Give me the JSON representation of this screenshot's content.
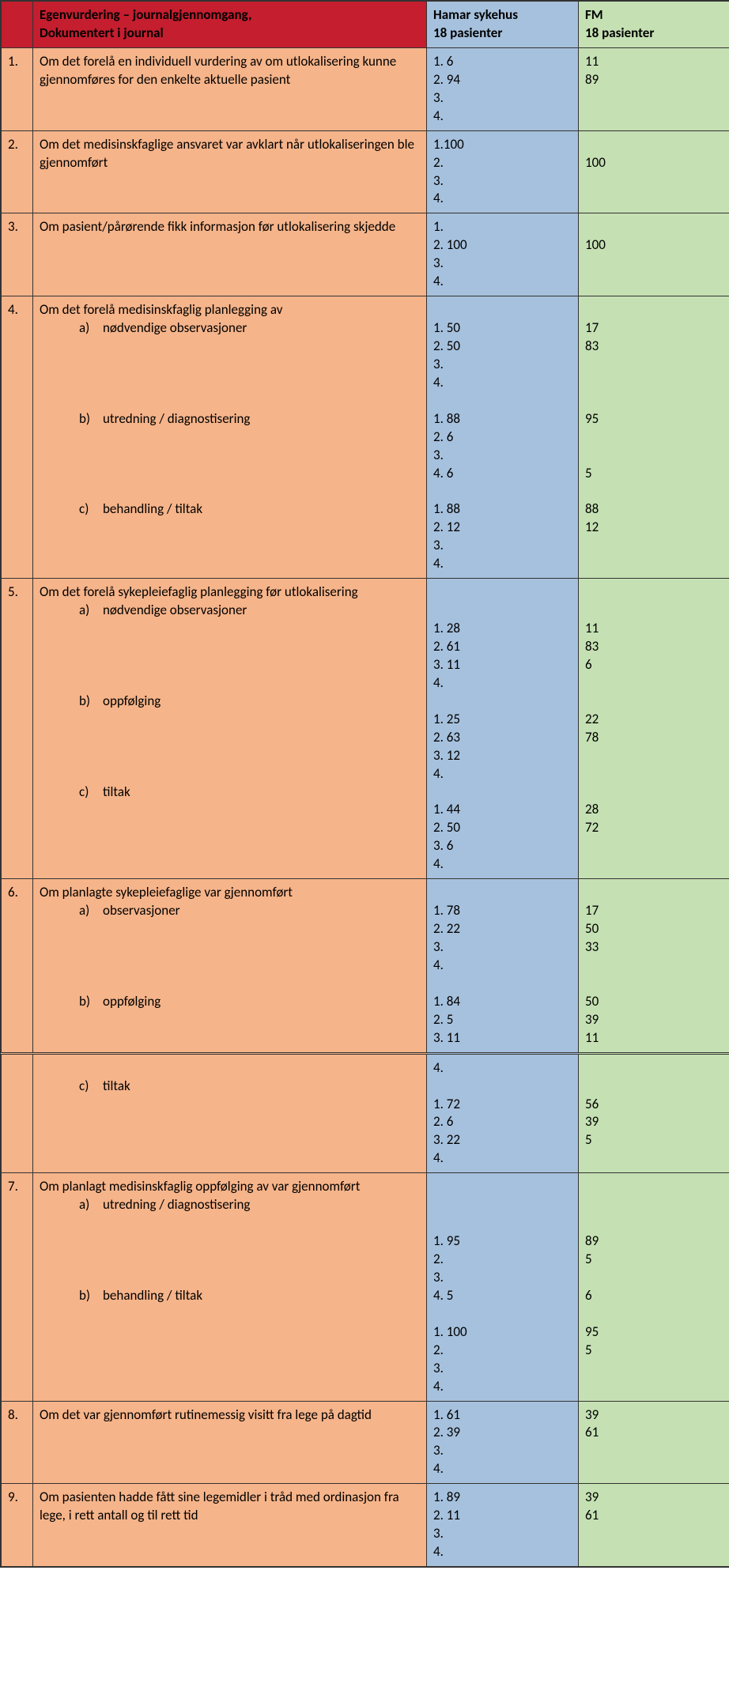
{
  "colors": {
    "header_red": "#c41e2f",
    "orange": "#f6b48a",
    "blue": "#a6c1dd",
    "green": "#c5e0b3",
    "border": "#333333"
  },
  "header": {
    "desc_line1": "Egenvurdering – journalgjennomgang,",
    "desc_line2": "Dokumentert i journal",
    "hamar_line1": "Hamar sykehus",
    "hamar_line2": "18 pasienter",
    "fm_line1": "FM",
    "fm_line2": "18 pasienter"
  },
  "rows": [
    {
      "num": "1.",
      "desc": "Om det forelå en individuell vurdering av om utlokalisering kunne gjennomføres for den enkelte aktuelle pasient",
      "hamar": "1. 6\n2. 94\n3.\n4.",
      "fm": "11\n89"
    },
    {
      "num": "2.",
      "desc": "Om det medisinskfaglige ansvaret var avklart når utlokaliseringen ble gjennomført",
      "hamar": "1.100\n2.\n3.\n4.",
      "fm": "\n100"
    },
    {
      "num": "3.",
      "desc": "Om pasient/pårørende fikk informasjon før utlokalisering skjedde",
      "hamar": "1.\n2. 100\n3.\n4.",
      "fm": "\n100"
    },
    {
      "num": "4.",
      "desc_intro": "Om det forelå medisinskfaglig planlegging av",
      "subs": [
        {
          "letter": "a)",
          "text": "nødvendige observasjoner"
        },
        {
          "letter": "b)",
          "text": "utredning / diagnostisering"
        },
        {
          "letter": "c)",
          "text": "behandling / tiltak"
        }
      ],
      "hamar": "\n1. 50\n2. 50\n3.\n4.\n\n1. 88\n2. 6\n3.\n4. 6\n\n1. 88\n2. 12\n3.\n4.",
      "fm": "\n17\n83\n\n\n\n95\n\n\n5\n\n88\n12"
    },
    {
      "num": "5.",
      "desc_intro": "Om det forelå sykepleiefaglig planlegging før utlokalisering",
      "subs": [
        {
          "letter": "a)",
          "text": "nødvendige observasjoner"
        },
        {
          "letter": "b)",
          "text": "oppfølging"
        },
        {
          "letter": "c)",
          "text": "tiltak"
        }
      ],
      "hamar": "\n\n1. 28\n2. 61\n3. 11\n4.\n\n1. 25\n2. 63\n3. 12\n4.\n\n1. 44\n2. 50\n3. 6\n4.",
      "fm": "\n\n11\n83\n6\n\n\n22\n78\n\n\n\n28\n72"
    },
    {
      "num": "6.",
      "desc_intro": "Om planlagte sykepleiefaglige var gjennomført",
      "subs_part1": [
        {
          "letter": "a)",
          "text": "observasjoner"
        },
        {
          "letter": "b)",
          "text": "oppfølging"
        }
      ],
      "hamar_part1": "\n1. 78\n2. 22\n3.\n4.\n\n1. 84\n2. 5\n3. 11",
      "fm_part1": "\n17\n50\n33\n\n\n50\n39\n11",
      "subs_part2": [
        {
          "letter": "c)",
          "text": "tiltak"
        }
      ],
      "hamar_part2": "4.\n\n1. 72\n2. 6\n3. 22\n4.",
      "fm_part2": "\n\n56\n39\n5"
    },
    {
      "num": "7.",
      "desc_intro": "Om planlagt medisinskfaglig oppfølging av var gjennomført",
      "subs": [
        {
          "letter": "a)",
          "text": "utredning / diagnostisering"
        },
        {
          "letter": "b)",
          "text": "behandling / tiltak"
        }
      ],
      "hamar": "\n\n\n1. 95\n2.\n3.\n4. 5\n\n1. 100\n2.\n3.\n4.\n ",
      "fm": "\n\n\n89\n5\n\n6\n\n95\n5"
    },
    {
      "num": "8.",
      "desc": "Om det var gjennomført rutinemessig visitt fra lege på dagtid",
      "hamar": "1. 61\n2. 39\n3.\n4.",
      "fm": "39\n61"
    },
    {
      "num": "9.",
      "desc": "Om pasienten hadde fått sine legemidler i tråd med ordinasjon fra lege, i rett antall og til rett tid",
      "hamar": "1. 89\n2. 11\n3.\n4.",
      "fm": "39\n61"
    }
  ]
}
